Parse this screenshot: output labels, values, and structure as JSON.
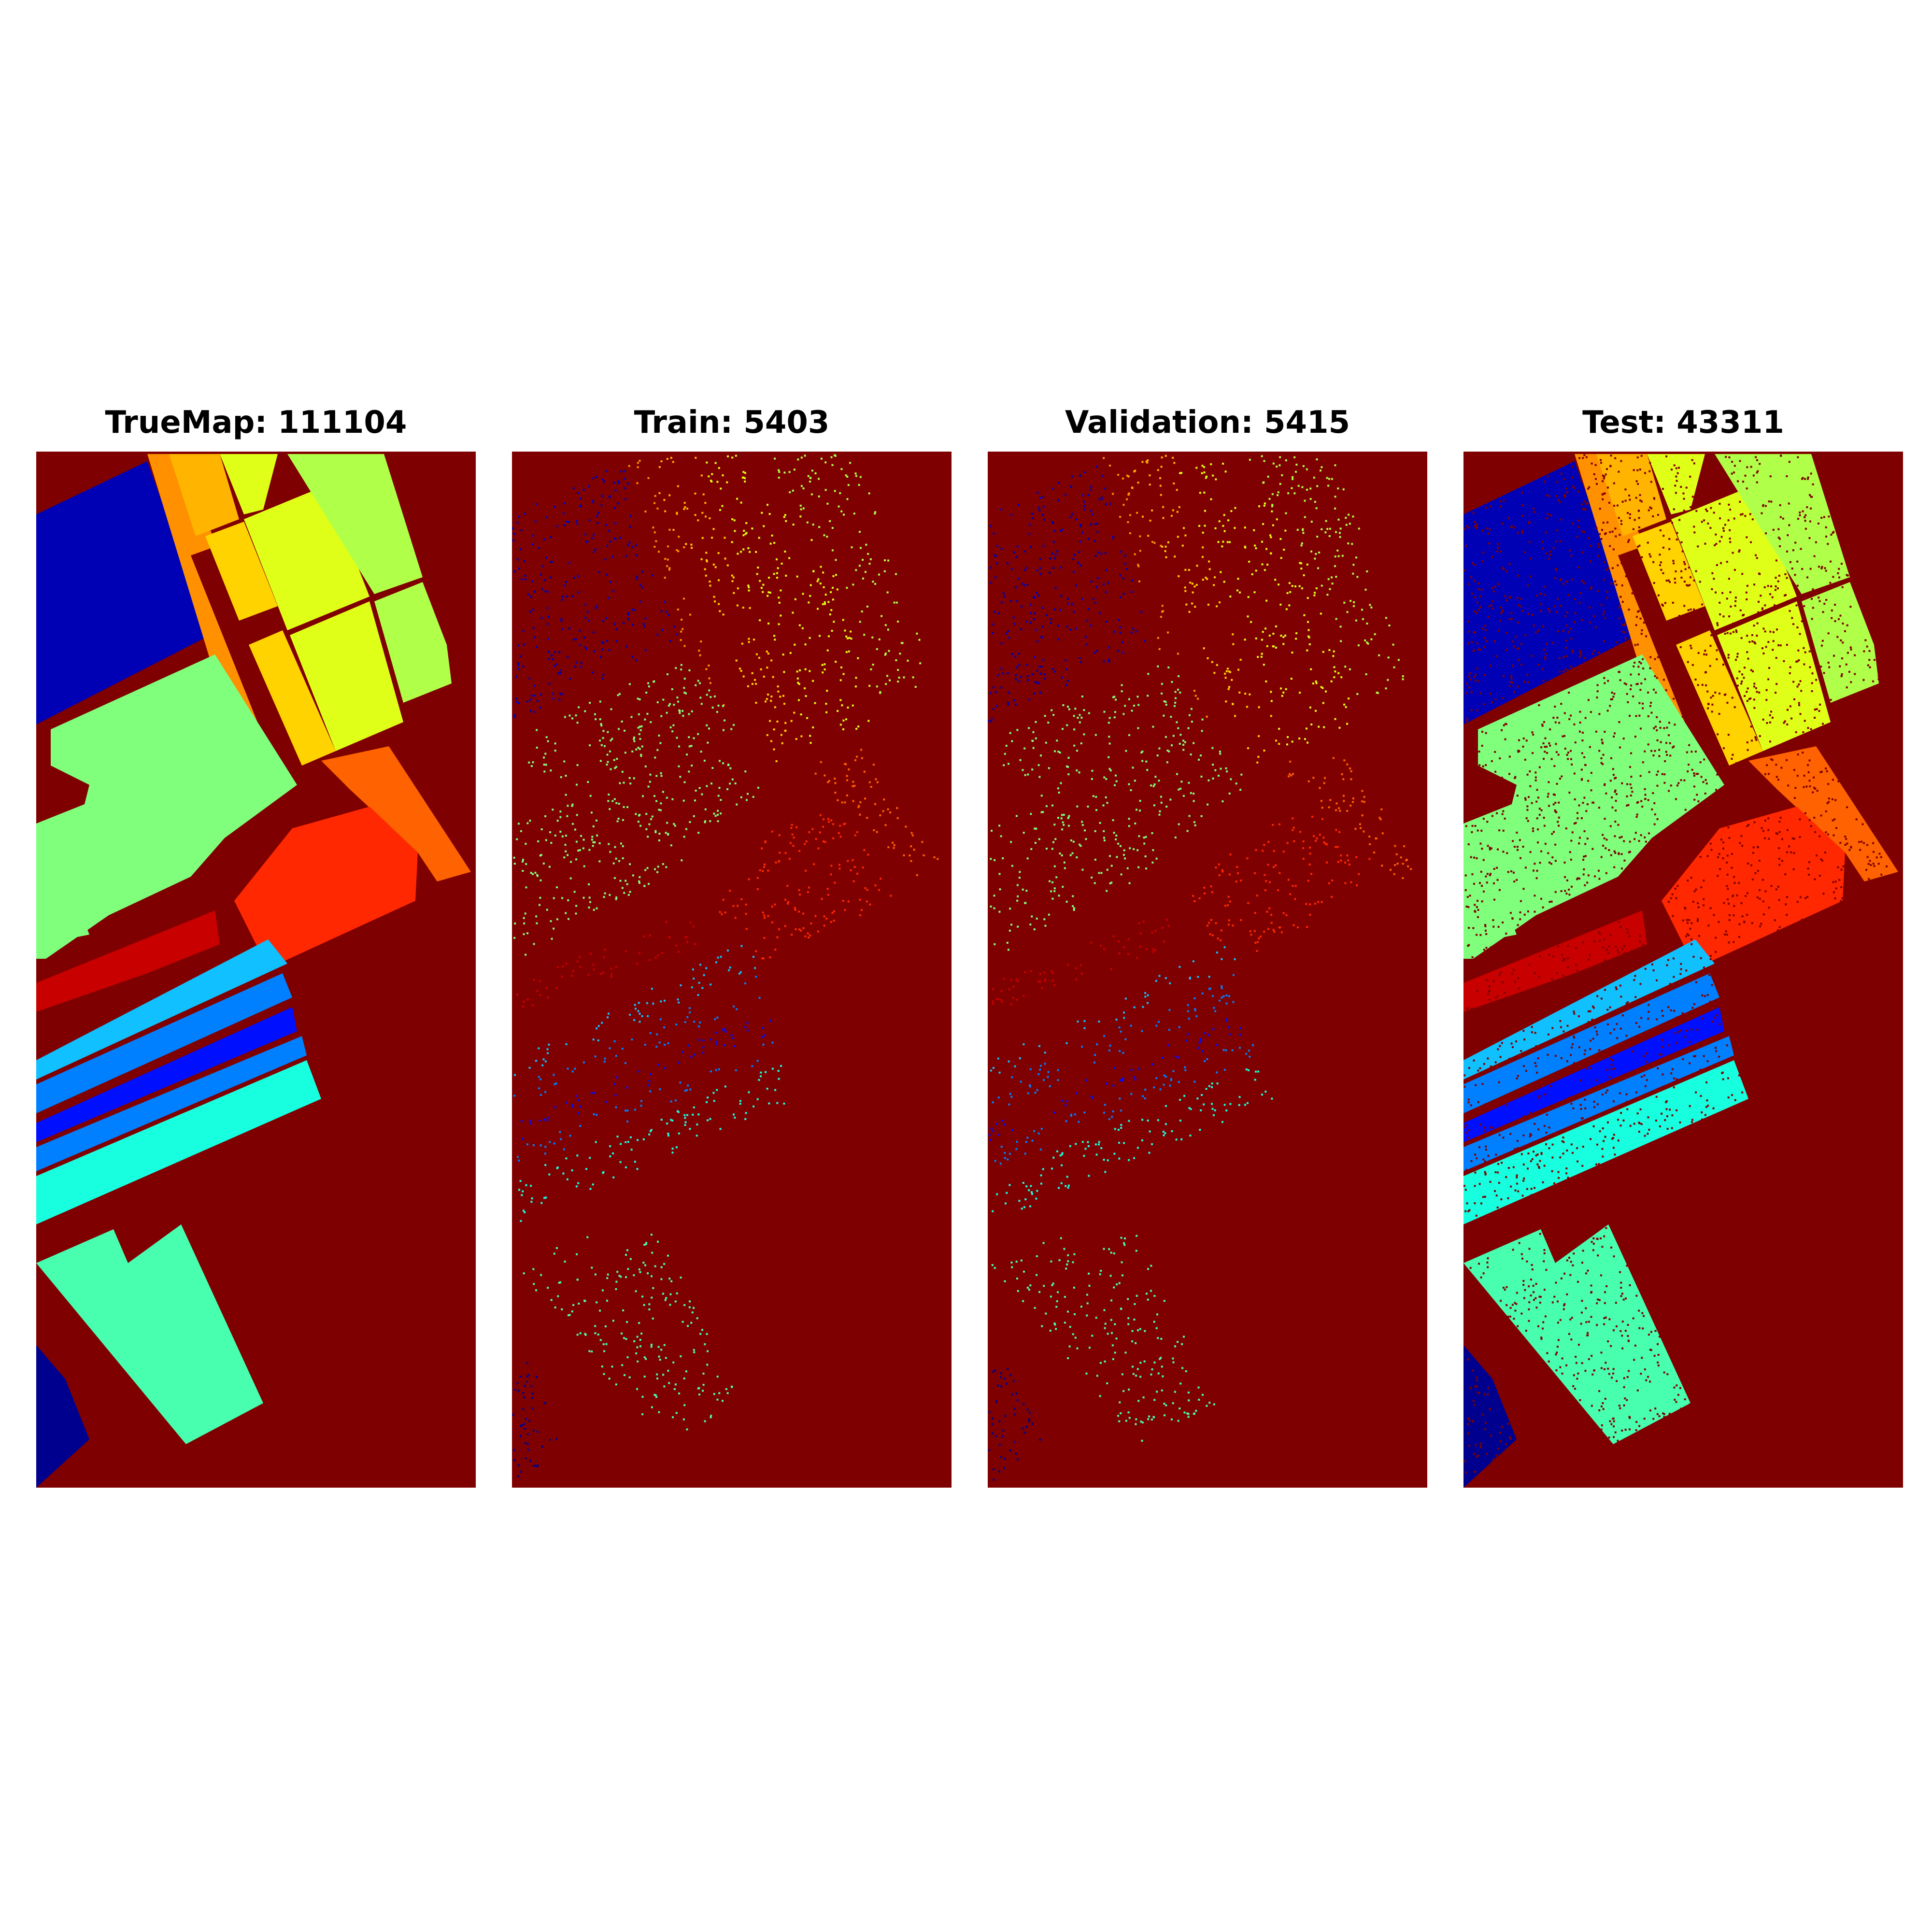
{
  "panels": [
    {
      "title": "TrueMap: 111104",
      "kind": "truemap"
    },
    {
      "title": "Train: 5403",
      "kind": "train"
    },
    {
      "title": "Validation: 5415",
      "kind": "validation"
    },
    {
      "title": "Test: 43311",
      "kind": "test"
    }
  ],
  "colors": {
    "background": "#7f0000",
    "classes": [
      "#0000b4",
      "#ff9000",
      "#ffd300",
      "#e0ff18",
      "#b0ff48",
      "#80ff7c",
      "#ff6200",
      "#ff2800",
      "#c80000",
      "#10c0ff",
      "#0080ff",
      "#0010ff",
      "#18ffe0",
      "#48ffb0",
      "#00008e",
      "#ffb400"
    ]
  },
  "colormap": "jet"
}
